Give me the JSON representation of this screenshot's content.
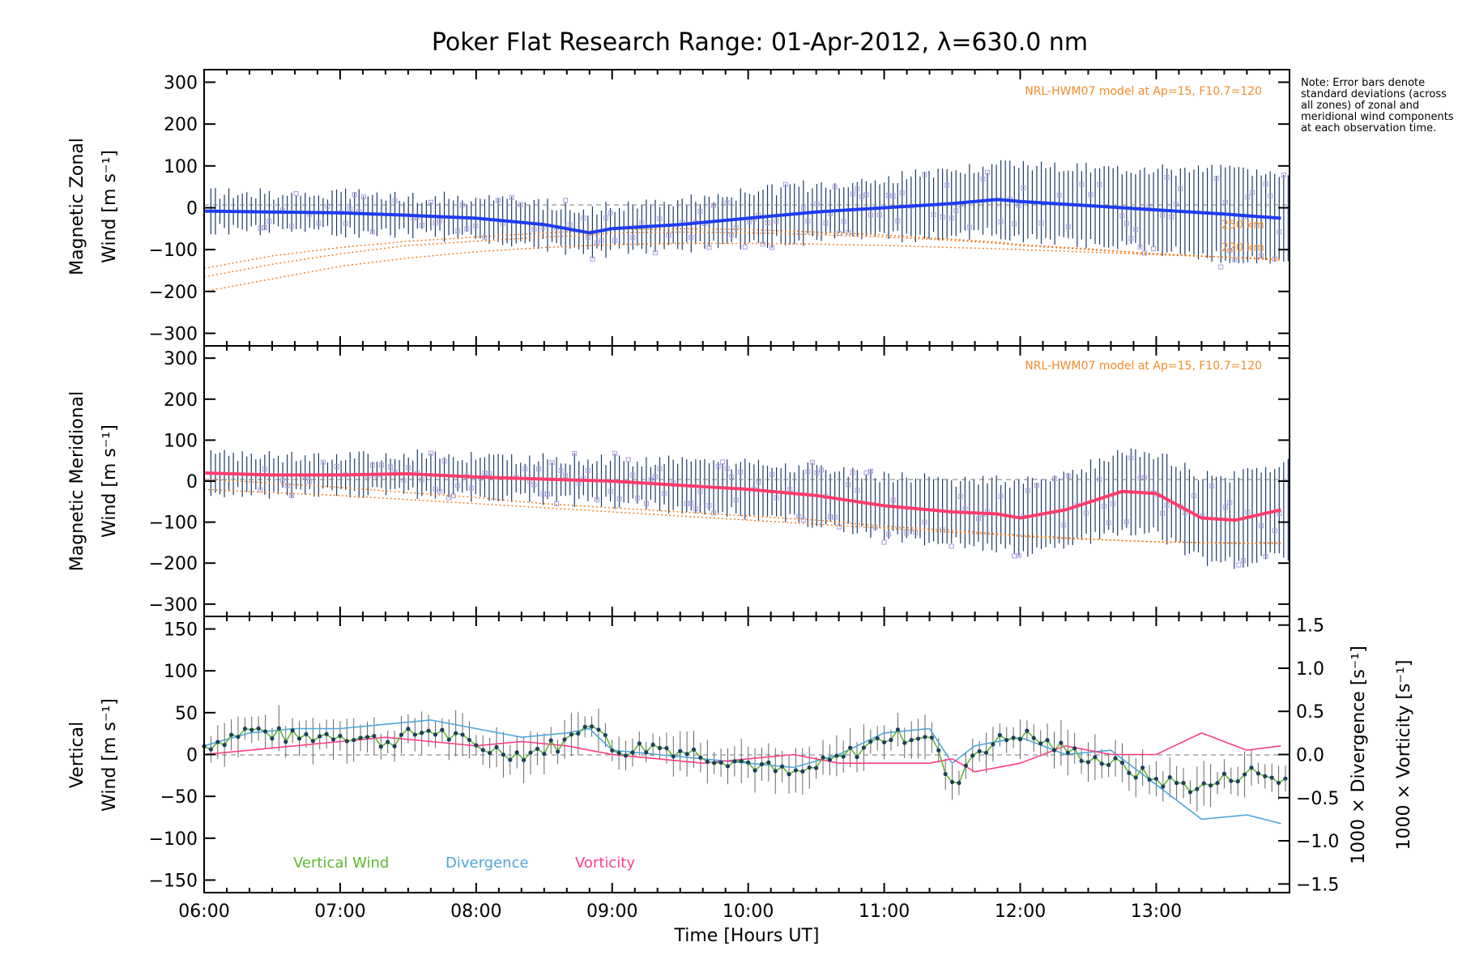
{
  "chart_data": [
    {
      "type": "line",
      "title": "Poker Flat Research Range: 01-Apr-2012, λ=630.0 nm",
      "ylabel": [
        "Magnetic Zonal",
        "Wind [m s⁻¹]"
      ],
      "ylim": [
        -330,
        330
      ],
      "yticks": [
        300,
        200,
        100,
        0,
        -100,
        -200,
        -300
      ],
      "model_label": "NRL-HWM07 model at Ap=15, F10.7=120",
      "model_annotations": [
        "250 km",
        "220 km"
      ],
      "x": [
        "06:00",
        "06:30",
        "07:00",
        "07:30",
        "08:00",
        "08:30",
        "08:50",
        "09:00",
        "09:30",
        "10:00",
        "10:30",
        "11:00",
        "11:30",
        "11:50",
        "12:00",
        "12:30",
        "13:00",
        "13:30",
        "13:55"
      ],
      "series": [
        {
          "color": "#1f3cf0",
          "values": [
            -8,
            -10,
            -12,
            -18,
            -25,
            -40,
            -60,
            -50,
            -40,
            -25,
            -10,
            0,
            10,
            20,
            15,
            5,
            -5,
            -15,
            -25
          ]
        }
      ],
      "model_series": [
        {
          "values": [
            -145,
            -115,
            -95,
            -80,
            -70,
            -60,
            -55,
            -52,
            -50,
            -52,
            -58,
            -65,
            -75,
            -82,
            -88,
            -98,
            -110,
            -118,
            -125
          ]
        },
        {
          "values": [
            -165,
            -135,
            -110,
            -90,
            -80,
            -70,
            -65,
            -60,
            -58,
            -60,
            -64,
            -70,
            -78,
            -85,
            -90,
            -100,
            -110,
            -118,
            -122
          ]
        },
        {
          "values": [
            -200,
            -170,
            -140,
            -120,
            -105,
            -95,
            -90,
            -88,
            -85,
            -85,
            -87,
            -90,
            -95,
            -98,
            -100,
            -106,
            -112,
            -118,
            -122
          ]
        }
      ]
    },
    {
      "type": "line",
      "ylabel": [
        "Magnetic Meridional",
        "Wind [m s⁻¹]"
      ],
      "ylim": [
        -330,
        330
      ],
      "yticks": [
        300,
        200,
        100,
        0,
        -100,
        -200,
        -300
      ],
      "model_label": "NRL-HWM07 model at Ap=15, F10.7=120",
      "x": [
        "06:00",
        "06:30",
        "07:00",
        "07:30",
        "08:00",
        "08:30",
        "09:00",
        "09:30",
        "10:00",
        "10:30",
        "11:00",
        "11:30",
        "11:50",
        "12:00",
        "12:20",
        "12:45",
        "13:00",
        "13:20",
        "13:35",
        "13:55"
      ],
      "series": [
        {
          "color": "#ff3d6e",
          "values": [
            20,
            15,
            15,
            18,
            10,
            5,
            0,
            -10,
            -20,
            -35,
            -60,
            -75,
            -80,
            -90,
            -70,
            -25,
            -30,
            -90,
            -95,
            -70
          ]
        }
      ],
      "model_series": [
        {
          "values": [
            5,
            -5,
            -15,
            -28,
            -40,
            -55,
            -65,
            -75,
            -85,
            -95,
            -110,
            -120,
            -128,
            -132,
            -138,
            -145,
            -148,
            -150,
            -150,
            -150
          ]
        },
        {
          "values": [
            -20,
            -28,
            -35,
            -45,
            -55,
            -65,
            -75,
            -85,
            -95,
            -105,
            -115,
            -125,
            -130,
            -135,
            -140,
            -145,
            -148,
            -150,
            -152,
            -152
          ]
        }
      ]
    },
    {
      "type": "line",
      "ylabel_left": [
        "Vertical",
        "Wind [m s⁻¹]"
      ],
      "ylabel_right": [
        "1000 × Divergence [s⁻¹]",
        "1000 × Vorticity [s⁻¹]"
      ],
      "ylim": [
        -165,
        165
      ],
      "ylim_right": [
        -1.6,
        1.6
      ],
      "yticks": [
        150,
        100,
        50,
        0,
        -50,
        -100,
        -150
      ],
      "yticks_right": [
        "1.5",
        "1.0",
        "0.5",
        "0.0",
        "-0.5",
        "-1.0",
        "-1.5"
      ],
      "xlabel": "Time [Hours UT]",
      "xticks": [
        "06:00",
        "07:00",
        "08:00",
        "09:00",
        "10:00",
        "11:00",
        "12:00",
        "13:00"
      ],
      "xlim_hours": [
        6.0,
        13.98
      ],
      "legend": [
        "Vertical Wind",
        "Divergence",
        "Vorticity"
      ],
      "x": [
        "06:00",
        "06:20",
        "06:40",
        "07:00",
        "07:20",
        "07:40",
        "08:00",
        "08:20",
        "08:40",
        "08:50",
        "09:00",
        "09:20",
        "09:40",
        "10:00",
        "10:20",
        "10:40",
        "11:00",
        "11:20",
        "11:30",
        "11:40",
        "12:00",
        "12:20",
        "12:40",
        "13:00",
        "13:20",
        "13:40",
        "13:55"
      ],
      "series": [
        {
          "name": "Vertical Wind",
          "color": "#5cb82e",
          "values": [
            10,
            30,
            20,
            25,
            15,
            30,
            10,
            0,
            15,
            45,
            5,
            10,
            0,
            -10,
            -25,
            -5,
            20,
            25,
            -40,
            5,
            25,
            5,
            -10,
            -30,
            -40,
            -20,
            -30
          ]
        },
        {
          "name": "Divergence",
          "color": "#4da6d9",
          "values": [
            0.1,
            0.25,
            0.3,
            0.3,
            0.35,
            0.4,
            0.3,
            0.2,
            0.25,
            0.3,
            0.05,
            0.0,
            -0.05,
            -0.1,
            -0.15,
            0.0,
            0.25,
            0.3,
            -0.1,
            0.1,
            0.2,
            0.0,
            0.05,
            -0.35,
            -0.75,
            -0.7,
            -0.8
          ]
        },
        {
          "name": "Vorticity",
          "color": "#ff3d88",
          "values": [
            0.0,
            0.05,
            0.1,
            0.15,
            0.2,
            0.15,
            0.1,
            0.15,
            0.1,
            0.05,
            0.0,
            -0.05,
            -0.1,
            -0.05,
            0.0,
            -0.1,
            -0.1,
            -0.1,
            -0.05,
            -0.2,
            -0.1,
            0.1,
            0.0,
            0.0,
            0.25,
            0.05,
            0.1
          ]
        }
      ]
    }
  ],
  "note": "Note: Error bars denote standard deviations (across all zones) of zonal and meridional wind components at each observation time."
}
